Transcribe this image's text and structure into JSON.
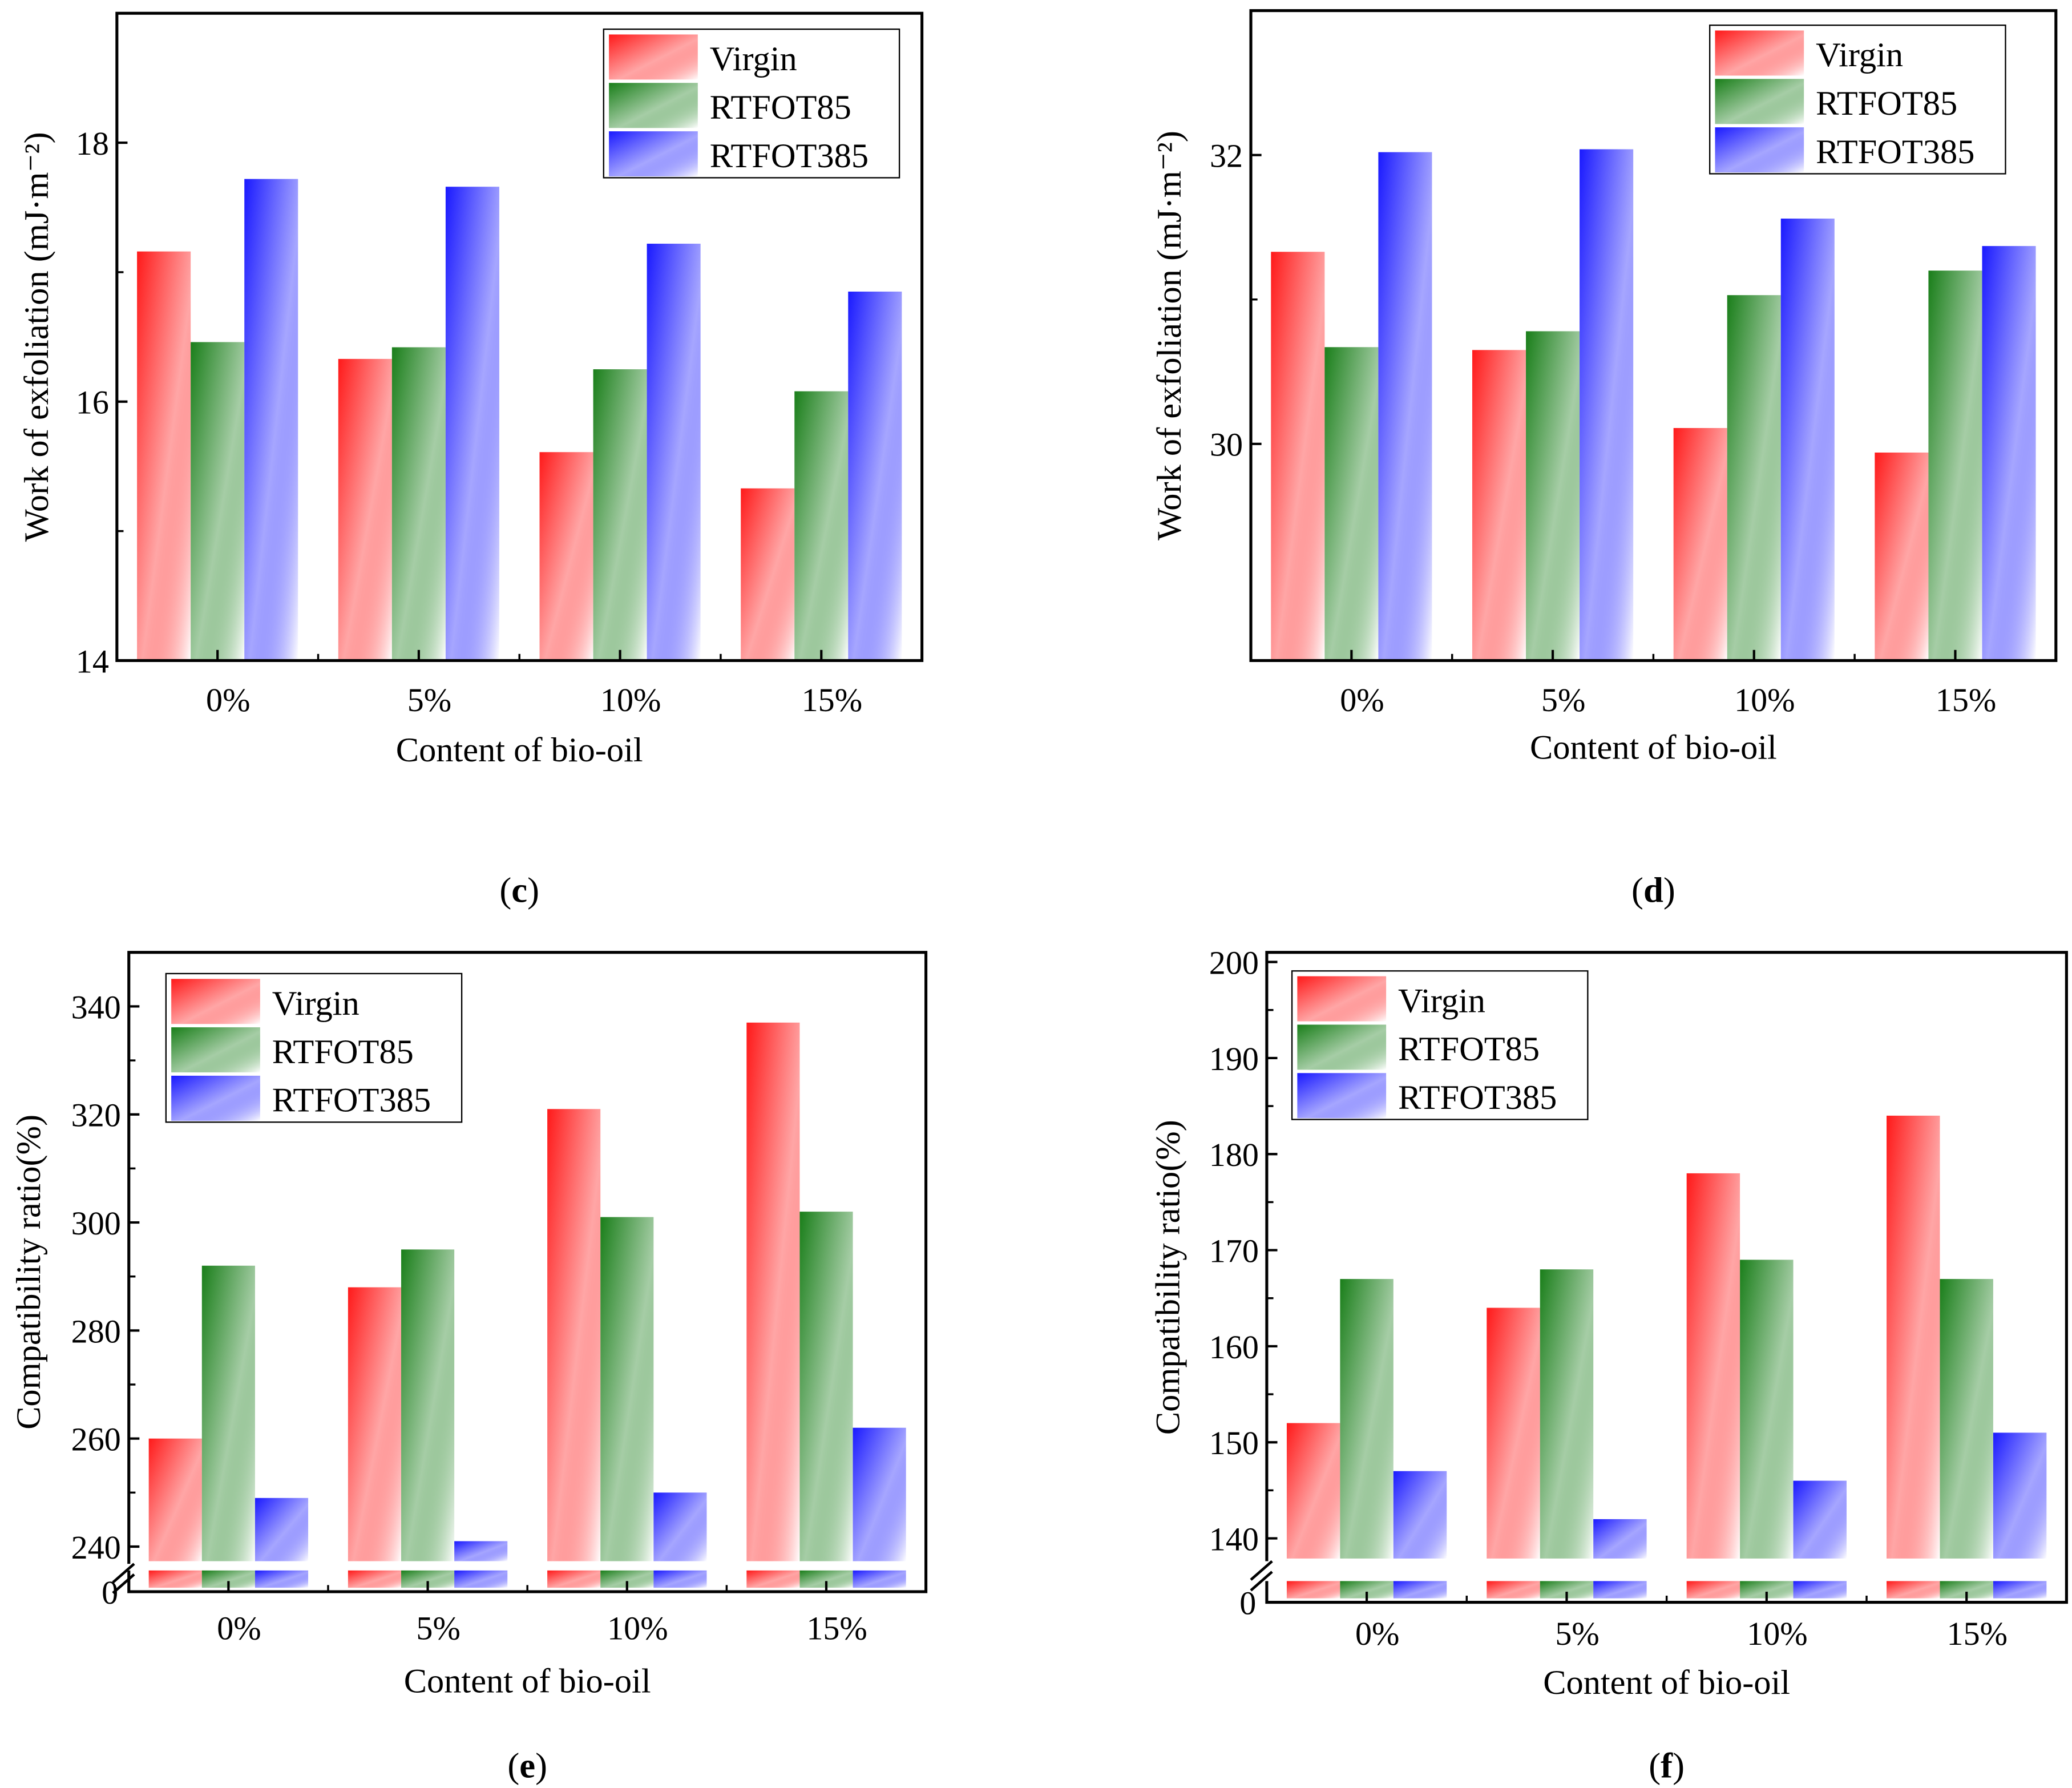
{
  "series_colors": {
    "Virgin": "#ff0000",
    "RTFOT85": "#007000",
    "RTFOT385": "#0000ff"
  },
  "chart_data": [
    {
      "panel": "c",
      "caption": "c",
      "type": "bar",
      "title": "",
      "xlabel": "Content of bio-oil",
      "ylabel": "Work of exfoliation (mJ·m⁻²)",
      "categories": [
        "0%",
        "5%",
        "10%",
        "15%"
      ],
      "ylim": [
        14,
        19
      ],
      "yticks": [
        14,
        16,
        18
      ],
      "legend": "top-right",
      "series": [
        {
          "name": "Virgin",
          "values": [
            17.16,
            16.33,
            15.61,
            15.33
          ]
        },
        {
          "name": "RTFOT85",
          "values": [
            16.46,
            16.42,
            16.25,
            16.08
          ]
        },
        {
          "name": "RTFOT385",
          "values": [
            17.72,
            17.66,
            17.22,
            16.85
          ]
        }
      ]
    },
    {
      "panel": "d",
      "caption": "d",
      "type": "bar",
      "title": "",
      "xlabel": "Content of bio-oil",
      "ylabel": "Work of exfoliation (mJ·m⁻²)",
      "categories": [
        "0%",
        "5%",
        "10%",
        "15%"
      ],
      "ylim": [
        28.5,
        33
      ],
      "yticks": [
        30,
        32
      ],
      "legend": "top-right",
      "series": [
        {
          "name": "Virgin",
          "values": [
            31.33,
            30.65,
            30.11,
            29.94
          ]
        },
        {
          "name": "RTFOT85",
          "values": [
            30.67,
            30.78,
            31.03,
            31.2
          ]
        },
        {
          "name": "RTFOT385",
          "values": [
            32.02,
            32.04,
            31.56,
            31.37
          ]
        }
      ]
    },
    {
      "panel": "e",
      "caption": "e",
      "type": "bar",
      "title": "",
      "xlabel": "Content of bio-oil",
      "ylabel": "Compatibility ratio(%)",
      "categories": [
        "0%",
        "5%",
        "10%",
        "15%"
      ],
      "ylim": [
        237.3,
        350
      ],
      "axis_break": true,
      "yticks": [
        240,
        260,
        280,
        300,
        320,
        340
      ],
      "zero_label": "0",
      "legend": "top-left",
      "series": [
        {
          "name": "Virgin",
          "values": [
            260,
            288,
            321,
            337
          ]
        },
        {
          "name": "RTFOT85",
          "values": [
            292,
            295,
            301,
            302
          ]
        },
        {
          "name": "RTFOT385",
          "values": [
            249,
            241,
            250,
            262
          ]
        }
      ]
    },
    {
      "panel": "f",
      "caption": "f",
      "type": "bar",
      "title": "",
      "xlabel": "Content of bio-oil",
      "ylabel": "Compatibility ratio(%)",
      "categories": [
        "0%",
        "5%",
        "10%",
        "15%"
      ],
      "ylim": [
        137.9,
        201
      ],
      "axis_break": true,
      "yticks": [
        140,
        150,
        160,
        170,
        180,
        190,
        200
      ],
      "zero_label": "0",
      "legend": "top-left",
      "series": [
        {
          "name": "Virgin",
          "values": [
            152,
            164,
            178,
            184
          ]
        },
        {
          "name": "RTFOT85",
          "values": [
            167,
            168,
            169,
            167
          ]
        },
        {
          "name": "RTFOT385",
          "values": [
            147,
            142,
            146,
            151
          ]
        }
      ]
    }
  ]
}
